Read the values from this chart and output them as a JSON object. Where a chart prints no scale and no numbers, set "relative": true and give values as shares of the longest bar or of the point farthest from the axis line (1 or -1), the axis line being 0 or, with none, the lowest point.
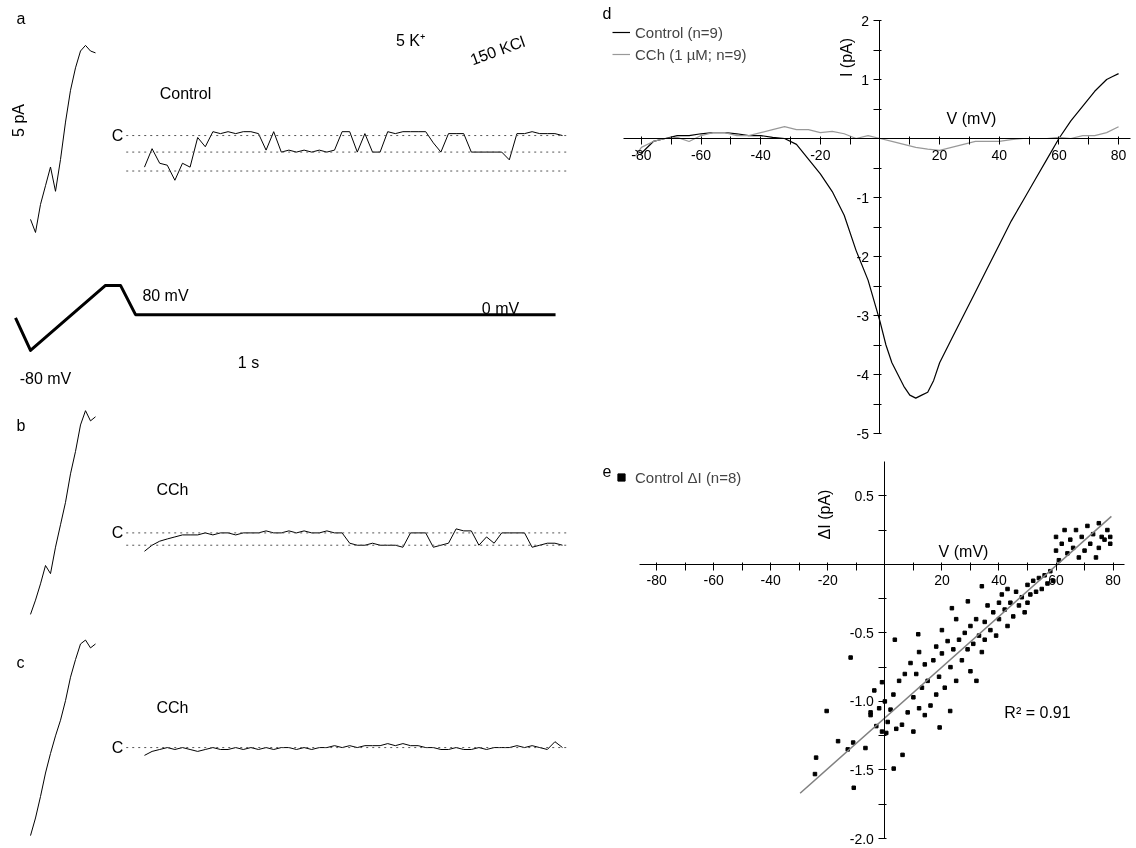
{
  "chart_data": [
    {
      "type": "line",
      "title": "a",
      "relative": true,
      "categories": [
        null,
        null,
        null,
        null,
        null,
        null,
        null,
        null,
        null,
        null,
        null,
        null,
        null,
        null
      ],
      "series": [
        {
          "color": "#000000",
          "values": [
            0.07,
            0,
            0.15,
            0.25,
            0.35,
            0.22,
            0.39,
            0.59,
            0.76,
            0.88,
            0.97,
            1.0,
            0.97,
            0.96
          ]
        }
      ],
      "annotations": [
        "5 pA"
      ]
    },
    {
      "type": "line",
      "relative": true,
      "categories": [
        null,
        null,
        null,
        null,
        null,
        null,
        null,
        null,
        null,
        null,
        null,
        null,
        null,
        null,
        null,
        null,
        null,
        null,
        null,
        null,
        null,
        null,
        null,
        null,
        null,
        null,
        null,
        null,
        null,
        null,
        null,
        null,
        null,
        null,
        null,
        null,
        null,
        null,
        null,
        null,
        null,
        null,
        null,
        null,
        null,
        null,
        null,
        null,
        null,
        null,
        null,
        null,
        null,
        null,
        null,
        null
      ],
      "series": [
        {
          "color": "#000000",
          "values": [
            0.27,
            0.65,
            0.35,
            0.31,
            0,
            0.35,
            0.27,
            0.88,
            0.69,
            1,
            0.96,
            1,
            0.96,
            1,
            1,
            0.96,
            0.62,
            1,
            0.58,
            0.62,
            0.58,
            0.62,
            0.58,
            0.62,
            0.58,
            0.62,
            1,
            1,
            0.58,
            0.96,
            0.58,
            0.58,
            1,
            0.96,
            1,
            1,
            1,
            1,
            0.77,
            0.58,
            0.96,
            0.96,
            0.96,
            0.58,
            0.58,
            0.58,
            0.58,
            0.58,
            0.42,
            0.96,
            0.96,
            1,
            0.96,
            0.96,
            0.96,
            0.92
          ]
        }
      ],
      "ref_lines": [
        {
          "axis": "y",
          "value": 0.92,
          "label": "C",
          "color": "#555555",
          "line_style": "dotted"
        },
        {
          "axis": "y",
          "value": 0.58,
          "color": "#555555",
          "line_style": "dotted"
        },
        {
          "axis": "y",
          "value": 0.19,
          "color": "#555555",
          "line_style": "dotted"
        }
      ],
      "annotations": [
        "Control",
        "5 K⁺",
        "150 KCl"
      ]
    },
    {
      "type": "line",
      "relative": true,
      "categories": [
        null,
        null,
        null,
        null,
        null,
        null,
        null,
        null,
        null,
        null,
        null,
        null,
        null,
        null,
        null,
        null,
        null,
        null,
        null,
        null,
        null,
        null,
        null,
        null,
        null,
        null,
        null,
        null,
        null,
        null,
        null,
        null,
        null,
        null,
        null,
        null,
        null
      ],
      "series": [
        {
          "color": "#000000",
          "values": [
            0.5,
            0,
            0.2,
            0.4,
            0.6,
            0.8,
            1,
            1,
            0.55,
            0.55,
            0.55,
            0.55,
            0.55,
            0.55,
            0.55,
            0.55,
            0.55,
            0.55,
            0.55,
            0.55,
            0.55,
            0.55,
            0.55,
            0.55,
            0.55,
            0.55,
            0.55,
            0.55,
            0.55,
            0.55,
            0.55,
            0.55,
            0.55,
            0.55,
            0.55,
            0.55,
            0.55
          ]
        }
      ],
      "annotations": [
        "80 mV",
        "0 mV",
        "-80 mV",
        "1 s"
      ]
    },
    {
      "type": "line",
      "title": "b",
      "relative": true,
      "categories": [
        null,
        null,
        null,
        null,
        null,
        null,
        null,
        null,
        null,
        null,
        null,
        null,
        null,
        null
      ],
      "series": [
        {
          "color": "#000000",
          "values": [
            0,
            0.07,
            0.15,
            0.24,
            0.2,
            0.33,
            0.44,
            0.55,
            0.69,
            0.8,
            0.93,
            1.0,
            0.95,
            0.97
          ]
        }
      ]
    },
    {
      "type": "line",
      "relative": true,
      "categories": [
        null,
        null,
        null,
        null,
        null,
        null,
        null,
        null,
        null,
        null,
        null,
        null,
        null,
        null,
        null,
        null,
        null,
        null,
        null,
        null,
        null,
        null,
        null,
        null,
        null,
        null,
        null,
        null,
        null,
        null,
        null,
        null,
        null,
        null,
        null,
        null,
        null,
        null,
        null,
        null,
        null,
        null,
        null,
        null,
        null,
        null,
        null,
        null,
        null,
        null,
        null,
        null,
        null,
        null,
        null,
        null
      ],
      "series": [
        {
          "color": "#000000",
          "values": [
            0,
            0.27,
            0.45,
            0.55,
            0.64,
            0.73,
            0.73,
            0.73,
            0.82,
            0.73,
            0.82,
            0.82,
            0.73,
            0.82,
            0.82,
            0.82,
            0.91,
            0.82,
            0.82,
            0.91,
            0.82,
            0.91,
            0.82,
            0.82,
            0.91,
            0.82,
            0.82,
            0.36,
            0.27,
            0.27,
            0.36,
            0.27,
            0.27,
            0.27,
            0.18,
            0.82,
            0.82,
            0.82,
            0.18,
            0.27,
            0.36,
            1,
            0.91,
            0.91,
            0.27,
            0.64,
            0.36,
            0.82,
            0.82,
            0.82,
            0.82,
            0.18,
            0.27,
            0.36,
            0.36,
            0.27
          ]
        }
      ],
      "ref_lines": [
        {
          "axis": "y",
          "value": 0.82,
          "label": "C",
          "color": "#555555",
          "line_style": "dotted"
        },
        {
          "axis": "y",
          "value": 0.27,
          "color": "#555555",
          "line_style": "dotted"
        }
      ],
      "annotations": [
        "CCh"
      ]
    },
    {
      "type": "line",
      "title": "c",
      "relative": true,
      "categories": [
        null,
        null,
        null,
        null,
        null,
        null,
        null,
        null,
        null,
        null,
        null,
        null,
        null,
        null
      ],
      "series": [
        {
          "color": "#000000",
          "values": [
            0,
            0.09,
            0.2,
            0.32,
            0.42,
            0.51,
            0.59,
            0.69,
            0.81,
            0.9,
            0.98,
            1.0,
            0.96,
            0.98
          ]
        }
      ]
    },
    {
      "type": "line",
      "relative": true,
      "categories": [
        null,
        null,
        null,
        null,
        null,
        null,
        null,
        null,
        null,
        null,
        null,
        null,
        null,
        null,
        null,
        null,
        null,
        null,
        null,
        null,
        null,
        null,
        null,
        null,
        null,
        null,
        null,
        null,
        null,
        null,
        null,
        null,
        null,
        null,
        null,
        null,
        null,
        null,
        null,
        null,
        null,
        null,
        null,
        null,
        null,
        null,
        null,
        null,
        null,
        null,
        null,
        null,
        null,
        null,
        null,
        null
      ],
      "series": [
        {
          "color": "#000000",
          "values": [
            0,
            0.29,
            0.43,
            0.57,
            0.43,
            0.57,
            0.43,
            0.29,
            0.43,
            0.57,
            0.43,
            0.43,
            0.57,
            0.43,
            0.57,
            0.43,
            0.57,
            0.43,
            0.57,
            0.57,
            0.43,
            0.57,
            0.43,
            0.57,
            0.57,
            0.71,
            0.57,
            0.71,
            0.57,
            0.71,
            0.71,
            0.71,
            0.86,
            0.71,
            0.86,
            0.71,
            0.71,
            0.57,
            0.57,
            0.43,
            0.43,
            0.57,
            0.43,
            0.43,
            0.57,
            0.43,
            0.57,
            0.57,
            0.57,
            0.71,
            0.57,
            0.71,
            0.57,
            0.43,
            1,
            0.57
          ]
        }
      ],
      "ref_lines": [
        {
          "axis": "y",
          "value": 0.57,
          "label": "C",
          "color": "#555555",
          "line_style": "dotted"
        }
      ],
      "annotations": [
        "CCh"
      ]
    },
    {
      "type": "line",
      "title": "d",
      "xlabel": "V (mV)",
      "ylabel": "I (pA)",
      "legend": "top left",
      "xlim": [
        -86,
        84
      ],
      "ylim": [
        -5,
        2
      ],
      "xticks": [
        -80,
        {
          "value": -70,
          "label": null
        },
        -60,
        {
          "value": -50,
          "label": null
        },
        -40,
        {
          "value": -30,
          "label": null
        },
        -20,
        {
          "value": -10,
          "label": null
        },
        {
          "value": 0,
          "label": null
        },
        {
          "value": 10,
          "label": null
        },
        20,
        {
          "value": 30,
          "label": null
        },
        40,
        {
          "value": 50,
          "label": null
        },
        60,
        {
          "value": 70,
          "label": null
        },
        80
      ],
      "yticks": [
        -5,
        {
          "value": -4.5,
          "label": null
        },
        -4,
        {
          "value": -3.5,
          "label": null
        },
        -3,
        {
          "value": -2.5,
          "label": null
        },
        -2,
        {
          "value": -1.5,
          "label": null
        },
        -1,
        {
          "value": -0.5,
          "label": null
        },
        {
          "value": 0,
          "label": null
        },
        {
          "value": 0.5,
          "label": null
        },
        1,
        {
          "value": 1.5,
          "label": null
        },
        2
      ],
      "series": [
        {
          "name": "Control (n=9)",
          "color": "#000000",
          "x": [
            -82,
            -80,
            -76,
            -72,
            -68,
            -64,
            -60,
            -56,
            -52,
            -48,
            -44,
            -40,
            -36,
            -32,
            -28,
            -24,
            -20,
            -16,
            -12,
            -8,
            -4,
            0,
            2,
            4,
            6,
            8,
            10,
            12,
            14,
            16,
            18,
            20,
            24,
            28,
            32,
            36,
            40,
            44,
            48,
            52,
            56,
            60,
            64,
            68,
            72,
            76,
            78,
            80
          ],
          "values": [
            -0.2,
            -0.25,
            -0.05,
            0.0,
            0.05,
            0.05,
            0.08,
            0.1,
            0.1,
            0.08,
            0.05,
            0.05,
            0.02,
            0.0,
            -0.1,
            -0.35,
            -0.6,
            -0.9,
            -1.3,
            -1.9,
            -2.4,
            -3.1,
            -3.5,
            -3.8,
            -4.0,
            -4.2,
            -4.35,
            -4.4,
            -4.35,
            -4.3,
            -4.1,
            -3.8,
            -3.4,
            -3.0,
            -2.6,
            -2.2,
            -1.8,
            -1.4,
            -1.05,
            -0.7,
            -0.35,
            0.0,
            0.3,
            0.55,
            0.8,
            1.0,
            1.05,
            1.1
          ]
        },
        {
          "name": "CCh (1 µM; n=9)",
          "color": "#999999",
          "x": [
            -82,
            -80,
            -76,
            -72,
            -68,
            -64,
            -60,
            -56,
            -52,
            -48,
            -44,
            -40,
            -36,
            -32,
            -28,
            -24,
            -20,
            -16,
            -12,
            -8,
            -4,
            0,
            4,
            8,
            12,
            16,
            20,
            24,
            28,
            32,
            36,
            40,
            44,
            48,
            52,
            56,
            60,
            64,
            68,
            70,
            72,
            76,
            80
          ],
          "values": [
            -0.3,
            -0.15,
            -0.05,
            0.0,
            0.02,
            -0.05,
            0.05,
            0.1,
            0.1,
            0.05,
            0.05,
            0.1,
            0.15,
            0.2,
            0.15,
            0.15,
            0.1,
            0.12,
            0.08,
            0.0,
            0.05,
            0.0,
            -0.05,
            -0.1,
            -0.15,
            -0.18,
            -0.2,
            -0.15,
            -0.1,
            -0.05,
            -0.05,
            -0.05,
            -0.02,
            0.0,
            0.0,
            0.0,
            0.02,
            0.0,
            0.05,
            0.05,
            0.05,
            0.1,
            0.2
          ]
        }
      ]
    },
    {
      "type": "scatter",
      "title": "e",
      "xlabel": "V (mV)",
      "ylabel": "ΔI (pA)",
      "legend": "top left",
      "xlim": [
        -86,
        84
      ],
      "ylim": [
        -2.0,
        0.75
      ],
      "xticks": [
        -80,
        {
          "value": -70,
          "label": null
        },
        -60,
        {
          "value": -50,
          "label": null
        },
        -40,
        {
          "value": -30,
          "label": null
        },
        -20,
        {
          "value": -10,
          "label": null
        },
        {
          "value": 10,
          "label": null
        },
        20,
        {
          "value": 30,
          "label": null
        },
        40,
        {
          "value": 50,
          "label": null
        },
        60,
        {
          "value": 70,
          "label": null
        },
        80
      ],
      "yticks": [
        {
          "value": -2,
          "label": "-2.0"
        },
        {
          "value": -1.75,
          "label": null
        },
        -1.5,
        {
          "value": -1.25,
          "label": null
        },
        {
          "value": -1,
          "label": "-1.0"
        },
        {
          "value": -0.75,
          "label": null
        },
        -0.5,
        {
          "value": -0.25,
          "label": null
        },
        {
          "value": 0.25,
          "label": null
        },
        0.5
      ],
      "series": [
        {
          "name": "Control ΔI (n=8)",
          "color": "#000000",
          "marker": "square",
          "x": [
            -24.1,
            -24.5,
            -20.4,
            -12,
            -10.9,
            -16.4,
            -11.1,
            -6.8,
            -3.7,
            -1,
            3.5,
            3.1,
            6.2,
            11.7,
            23.5,
            29.1,
            34,
            19.2,
            22.9,
            32.1,
            -13,
            -5,
            -2,
            -1,
            0,
            0.5,
            1,
            -3,
            -5,
            2,
            3,
            4,
            5,
            6,
            7,
            8,
            9,
            10,
            10,
            11,
            12,
            12,
            13,
            14,
            14,
            15,
            16,
            17,
            18,
            18,
            19,
            20,
            20,
            21,
            22,
            23,
            24,
            25,
            25,
            26,
            27,
            28,
            29,
            30,
            30,
            31,
            32,
            33,
            34,
            35,
            35,
            36,
            37,
            38,
            39,
            40,
            40,
            41,
            42,
            43,
            43,
            44,
            45,
            46,
            47,
            48,
            49,
            50,
            50,
            51,
            52,
            53,
            54,
            55,
            56,
            57,
            58,
            59,
            60,
            60,
            61,
            62,
            63,
            64,
            65,
            66,
            67,
            68,
            69,
            70,
            71,
            72,
            73,
            74,
            75,
            75,
            76,
            77,
            78,
            79,
            79
          ],
          "values": [
            -1.41,
            -1.53,
            -1.07,
            -0.68,
            -1.63,
            -1.29,
            -1.3,
            -1.34,
            -0.92,
            -0.86,
            -0.55,
            -1.49,
            -1.39,
            -0.51,
            -0.32,
            -0.27,
            -0.16,
            -1.19,
            -1.07,
            -0.85,
            -1.35,
            -1.1,
            -1.05,
            -1.22,
            -1.0,
            -1.23,
            -1.15,
            -1.18,
            -1.08,
            -1.06,
            -0.95,
            -1.2,
            -0.85,
            -1.17,
            -0.8,
            -1.08,
            -0.72,
            -0.97,
            -1.22,
            -0.8,
            -1.05,
            -0.64,
            -0.9,
            -1.1,
            -0.73,
            -0.85,
            -1.03,
            -0.7,
            -0.95,
            -0.6,
            -0.82,
            -0.48,
            -0.65,
            -0.9,
            -0.56,
            -0.75,
            -0.62,
            -0.4,
            -0.85,
            -0.55,
            -0.7,
            -0.5,
            -0.62,
            -0.45,
            -0.78,
            -0.58,
            -0.4,
            -0.52,
            -0.64,
            -0.42,
            -0.55,
            -0.3,
            -0.48,
            -0.35,
            -0.52,
            -0.28,
            -0.4,
            -0.22,
            -0.33,
            -0.45,
            -0.18,
            -0.28,
            -0.38,
            -0.2,
            -0.3,
            -0.24,
            -0.35,
            -0.15,
            -0.28,
            -0.22,
            -0.12,
            -0.2,
            -0.1,
            -0.18,
            -0.08,
            -0.14,
            -0.05,
            -0.12,
            0.1,
            0.2,
            0.03,
            0.15,
            0.25,
            0.08,
            0.18,
            0.12,
            0.25,
            0.05,
            0.2,
            0.1,
            0.28,
            0.15,
            0.22,
            0.05,
            0.3,
            0.12,
            0.2,
            0.18,
            0.25,
            0.2,
            0.15
          ]
        },
        {
          "type": "line",
          "color": "#808080",
          "x": [
            -29.7,
            79.4
          ],
          "values": [
            -1.67,
            0.35
          ]
        }
      ],
      "annotations": [
        "R² = 0.91"
      ]
    }
  ]
}
